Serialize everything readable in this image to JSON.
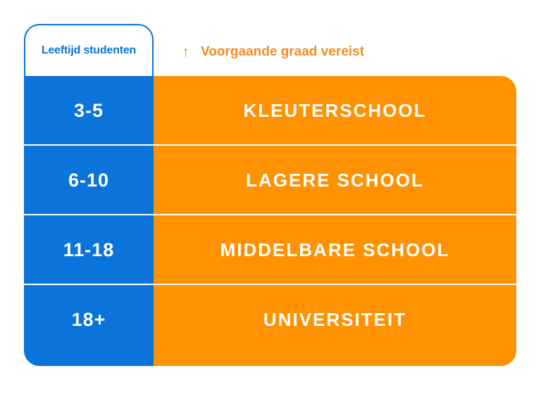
{
  "header": {
    "column_title": "Leeftijd studenten",
    "legend_arrow": "↑",
    "legend_text": "Voorgaande graad vereist"
  },
  "rows": [
    {
      "age": "3-5",
      "level": "KLEUTERSCHOOL"
    },
    {
      "age": "6-10",
      "level": "LAGERE SCHOOL"
    },
    {
      "age": "11-18",
      "level": "MIDDELBARE SCHOOL"
    },
    {
      "age": "18+",
      "level": "UNIVERSITEIT"
    }
  ],
  "colors": {
    "blue": "#0a74da",
    "orange": "#ff9200",
    "legend_orange": "#f68b1f",
    "text_on_fill": "#ffffff"
  }
}
